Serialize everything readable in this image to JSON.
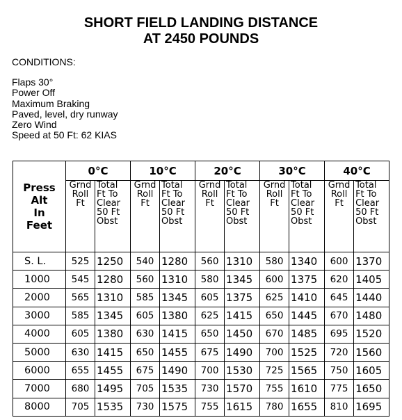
{
  "title": {
    "line1": "SHORT FIELD LANDING DISTANCE",
    "line2": "AT 2450 POUNDS"
  },
  "conditions": {
    "heading": "CONDITIONS:",
    "items": [
      "Flaps 30°",
      "Power Off",
      "Maximum Braking",
      "Paved, level, dry runway",
      "Zero Wind",
      "Speed at 50 Ft:  62 KIAS"
    ]
  },
  "table": {
    "press_alt_header": [
      "Press",
      "Alt",
      "In",
      "Feet"
    ],
    "temperatures": [
      "0°C",
      "10°C",
      "20°C",
      "30°C",
      "40°C"
    ],
    "grnd_roll_header": [
      "Grnd",
      "Roll",
      "Ft"
    ],
    "total_header": [
      "Total",
      "Ft To",
      "Clear",
      "50 Ft",
      "Obst"
    ],
    "rows": [
      {
        "alt": "S. L.",
        "values": [
          "525",
          "1250",
          "540",
          "1280",
          "560",
          "1310",
          "580",
          "1340",
          "600",
          "1370"
        ]
      },
      {
        "alt": "1000",
        "values": [
          "545",
          "1280",
          "560",
          "1310",
          "580",
          "1345",
          "600",
          "1375",
          "620",
          "1405"
        ]
      },
      {
        "alt": "2000",
        "values": [
          "565",
          "1310",
          "585",
          "1345",
          "605",
          "1375",
          "625",
          "1410",
          "645",
          "1440"
        ]
      },
      {
        "alt": "3000",
        "values": [
          "585",
          "1345",
          "605",
          "1380",
          "625",
          "1415",
          "650",
          "1445",
          "670",
          "1480"
        ]
      },
      {
        "alt": "4000",
        "values": [
          "605",
          "1380",
          "630",
          "1415",
          "650",
          "1450",
          "670",
          "1485",
          "695",
          "1520"
        ]
      },
      {
        "alt": "5000",
        "values": [
          "630",
          "1415",
          "650",
          "1455",
          "675",
          "1490",
          "700",
          "1525",
          "720",
          "1560"
        ]
      },
      {
        "alt": "6000",
        "values": [
          "655",
          "1455",
          "675",
          "1490",
          "700",
          "1530",
          "725",
          "1565",
          "750",
          "1605"
        ]
      },
      {
        "alt": "7000",
        "values": [
          "680",
          "1495",
          "705",
          "1535",
          "730",
          "1570",
          "755",
          "1610",
          "775",
          "1650"
        ]
      },
      {
        "alt": "8000",
        "values": [
          "705",
          "1535",
          "730",
          "1575",
          "755",
          "1615",
          "780",
          "1655",
          "810",
          "1695"
        ]
      }
    ]
  }
}
